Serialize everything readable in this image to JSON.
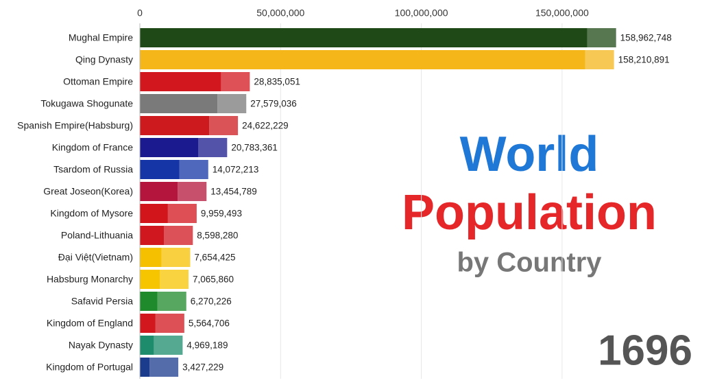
{
  "chart_data": {
    "type": "bar",
    "orientation": "horizontal",
    "title": "World",
    "subtitle": "Population",
    "caption": "by Country",
    "period": "1696",
    "categories": [
      "Mughal Empire",
      "Qing Dynasty",
      "Ottoman Empire",
      "Tokugawa Shogunate",
      "Spanish Empire(Habsburg)",
      "Kingdom of France",
      "Tsardom of Russia",
      "Great Joseon(Korea)",
      "Kingdom of Mysore",
      "Poland-Lithuania",
      "Đại Việt(Vietnam)",
      "Habsburg Monarchy",
      "Safavid Persia",
      "Kingdom of England",
      "Nayak Dynasty",
      "Kingdom of Portugal"
    ],
    "values": [
      158962748,
      158210891,
      28835051,
      27579036,
      24622229,
      20783361,
      14072213,
      13454789,
      9959493,
      8598280,
      7654425,
      7065860,
      6270226,
      5564706,
      4969189,
      3427229
    ],
    "value_labels": [
      "158,962,748",
      "158,210,891",
      "28,835,051",
      "27,579,036",
      "24,622,229",
      "20,783,361",
      "14,072,213",
      "13,454,789",
      "9,959,493",
      "8,598,280",
      "7,654,425",
      "7,065,860",
      "6,270,226",
      "5,564,706",
      "4,969,189",
      "3,427,229"
    ],
    "colors": [
      "#1f4a17",
      "#f4b619",
      "#d3171e",
      "#7a7a7a",
      "#cc1a1f",
      "#1b1a8e",
      "#1535a6",
      "#b4153c",
      "#d2141b",
      "#d0161f",
      "#f5c000",
      "#f7c400",
      "#1f8a2c",
      "#d2171e",
      "#1c8c6c",
      "#1b3b8d"
    ],
    "xlim": [
      0,
      170000000
    ],
    "xticks": [
      0,
      {
        "value": 50000000,
        "label": "50,000,000"
      },
      {
        "value": 100000000,
        "label": "100,000,000"
      },
      {
        "value": 150000000,
        "label": "150,000,000"
      }
    ],
    "grid": true
  }
}
